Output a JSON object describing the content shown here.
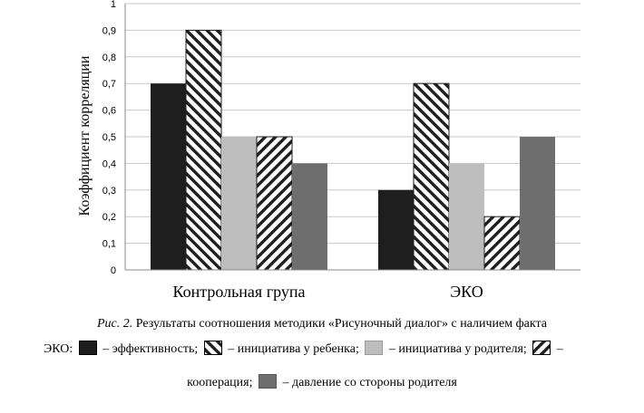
{
  "chart_data": {
    "type": "bar",
    "categories": [
      "Контрольная група",
      "ЭКО"
    ],
    "series": [
      {
        "name": "эффективность",
        "values": [
          0.7,
          0.3
        ],
        "color": "#1e1e1e",
        "pattern": "solid"
      },
      {
        "name": "инициатива у ребенка",
        "values": [
          0.9,
          0.7
        ],
        "color": "#1e1e1e",
        "pattern": "diag-up"
      },
      {
        "name": "инициатива у родителя",
        "values": [
          0.5,
          0.4
        ],
        "color": "#bdbdbd",
        "pattern": "solid"
      },
      {
        "name": "кооперация",
        "values": [
          0.5,
          0.2
        ],
        "color": "#1e1e1e",
        "pattern": "diag-down"
      },
      {
        "name": "давление со стороны родителя",
        "values": [
          0.4,
          0.5
        ],
        "color": "#6e6e6e",
        "pattern": "solid"
      }
    ],
    "ylabel": "Коэффициент корреляции",
    "ylim": [
      0,
      1
    ],
    "yticks": [
      "0",
      "0,1",
      "0,2",
      "0,3",
      "0,4",
      "0,5",
      "0,6",
      "0,7",
      "0,8",
      "0,9",
      "1"
    ],
    "grid": true,
    "legend_placement": "bottom"
  },
  "caption": {
    "label": "Рис. 2.",
    "line1": " Результаты соотношения методики «Рисуночный диалог» с наличием факта",
    "prefix": "ЭКО:",
    "item1": " – эффективность;",
    "item2": " – инициатива у ребенка;",
    "item3": " – инициатива у родителя;",
    "item4": " –",
    "line3": "кооперация;",
    "item5": " – давление со стороны родителя"
  }
}
